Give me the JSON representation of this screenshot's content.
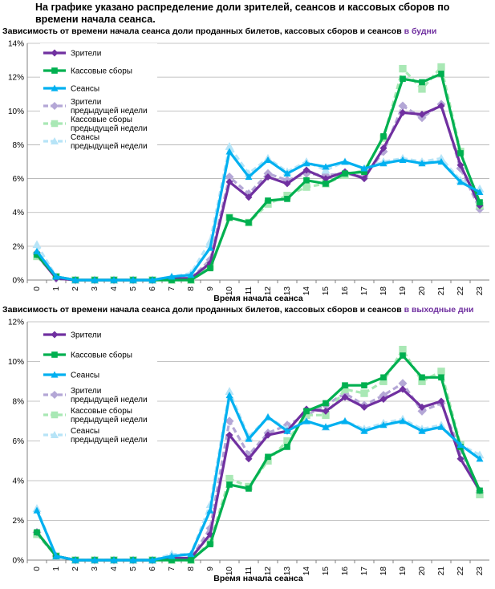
{
  "intro_text": "На графике указано распределение доли зрителей, сеансов и кассовых сборов по времени начала сеанса.",
  "colors": {
    "viewers": "#7030a0",
    "box_office": "#00b050",
    "sessions": "#00b0f0",
    "viewers_prev": "#b4a7d6",
    "box_office_prev": "#a9e8b5",
    "sessions_prev": "#b7e4f7"
  },
  "chart_data": [
    {
      "type": "line",
      "title_main": "Зависимость от времени начала сеанса доли проданных билетов, кассовых сборов и сеансов",
      "title_highlight": "в будни",
      "xlabel": "Время начала сеанса",
      "ylabel": "",
      "categories": [
        "0",
        "1",
        "2",
        "3",
        "4",
        "5",
        "6",
        "7",
        "8",
        "9",
        "10",
        "11",
        "12",
        "13",
        "14",
        "15",
        "16",
        "17",
        "18",
        "19",
        "20",
        "21",
        "22",
        "23"
      ],
      "yticks": [
        "0%",
        "2%",
        "4%",
        "6%",
        "8%",
        "10%",
        "12%",
        "14%"
      ],
      "ylim": [
        0,
        14
      ],
      "grid": true,
      "legend_position": "top-left",
      "series": [
        {
          "key": "viewers",
          "name": "Зрители",
          "marker": "diamond",
          "dash": false,
          "values": [
            1.5,
            0.1,
            0,
            0,
            0,
            0,
            0,
            0.1,
            0.1,
            1.0,
            5.8,
            4.9,
            6.1,
            5.7,
            6.5,
            6.0,
            6.4,
            6.0,
            7.8,
            9.9,
            9.8,
            10.3,
            6.8,
            4.4
          ]
        },
        {
          "key": "box_office",
          "name": "Кассовые сборы",
          "marker": "square",
          "dash": false,
          "values": [
            1.5,
            0.2,
            0,
            0,
            0,
            0,
            0,
            0,
            0,
            0.7,
            3.7,
            3.4,
            4.7,
            4.8,
            5.9,
            5.7,
            6.3,
            6.4,
            8.5,
            11.9,
            11.7,
            12.2,
            7.5,
            4.6
          ]
        },
        {
          "key": "sessions",
          "name": "Сеансы",
          "marker": "triangle",
          "dash": false,
          "values": [
            1.7,
            0.2,
            0,
            0,
            0,
            0,
            0,
            0.2,
            0.3,
            1.9,
            7.6,
            6.1,
            7.1,
            6.3,
            6.9,
            6.7,
            7.0,
            6.6,
            6.9,
            7.1,
            6.9,
            7.0,
            5.8,
            5.2
          ]
        },
        {
          "key": "viewers_prev",
          "name": "Зрители предыдущей недели",
          "marker": "diamond",
          "dash": true,
          "values": [
            1.6,
            0.1,
            0,
            0,
            0,
            0,
            0,
            0.1,
            0.1,
            1.2,
            6.1,
            5.1,
            6.3,
            5.9,
            6.3,
            6.2,
            6.3,
            6.1,
            7.6,
            10.3,
            9.6,
            10.4,
            6.6,
            4.2
          ]
        },
        {
          "key": "box_office_prev",
          "name": "Кассовые сборы предыдущей недели",
          "marker": "square",
          "dash": true,
          "values": [
            1.4,
            0.2,
            0,
            0,
            0,
            0,
            0,
            0,
            0,
            0.8,
            3.7,
            3.4,
            4.5,
            5.0,
            5.5,
            5.7,
            6.2,
            6.5,
            8.4,
            12.5,
            11.3,
            12.6,
            7.6,
            4.4
          ]
        },
        {
          "key": "sessions_prev",
          "name": "Сеансы предыдущей недели",
          "marker": "triangle",
          "dash": true,
          "values": [
            2.1,
            0.2,
            0,
            0,
            0,
            0,
            0,
            0.2,
            0.4,
            2.3,
            7.9,
            6.3,
            7.2,
            6.4,
            7.0,
            6.5,
            7.0,
            6.6,
            7.0,
            7.2,
            7.0,
            7.2,
            5.9,
            5.4
          ]
        }
      ]
    },
    {
      "type": "line",
      "title_main": "Зависимость от времени начала сеанса доли проданных билетов, кассовых сборов и сеансов",
      "title_highlight": "в выходные дни",
      "xlabel": "Время начала сеанса",
      "ylabel": "",
      "categories": [
        "0",
        "1",
        "2",
        "3",
        "4",
        "5",
        "6",
        "7",
        "8",
        "9",
        "10",
        "11",
        "12",
        "13",
        "14",
        "15",
        "16",
        "17",
        "18",
        "19",
        "20",
        "21",
        "22",
        "23"
      ],
      "yticks": [
        "0%",
        "2%",
        "4%",
        "6%",
        "8%",
        "10%",
        "12%"
      ],
      "ylim": [
        0,
        12
      ],
      "grid": true,
      "legend_position": "top-left",
      "series": [
        {
          "key": "viewers",
          "name": "Зрители",
          "marker": "diamond",
          "dash": false,
          "values": [
            1.4,
            0.2,
            0,
            0,
            0,
            0,
            0,
            0.1,
            0.1,
            1.3,
            6.3,
            5.1,
            6.3,
            6.5,
            7.6,
            7.5,
            8.2,
            7.7,
            8.1,
            8.6,
            7.7,
            8.0,
            5.1,
            3.5
          ]
        },
        {
          "key": "box_office",
          "name": "Кассовые сборы",
          "marker": "square",
          "dash": false,
          "values": [
            1.4,
            0.2,
            0,
            0,
            0,
            0,
            0,
            0,
            0,
            0.8,
            3.8,
            3.6,
            5.2,
            5.7,
            7.5,
            7.9,
            8.8,
            8.8,
            9.2,
            10.3,
            9.2,
            9.2,
            5.7,
            3.5
          ]
        },
        {
          "key": "sessions",
          "name": "Сеансы",
          "marker": "triangle",
          "dash": false,
          "values": [
            2.5,
            0.2,
            0,
            0,
            0,
            0,
            0,
            0.2,
            0.3,
            2.5,
            8.3,
            6.1,
            7.2,
            6.5,
            7.0,
            6.7,
            7.0,
            6.5,
            6.8,
            7.0,
            6.5,
            6.7,
            5.8,
            5.1
          ]
        },
        {
          "key": "viewers_prev",
          "name": "Зрители предыдущей недели",
          "marker": "diamond",
          "dash": true,
          "values": [
            1.4,
            0.2,
            0,
            0,
            0,
            0,
            0,
            0.1,
            0.1,
            1.6,
            7.0,
            5.3,
            6.4,
            6.8,
            7.3,
            7.8,
            8.4,
            7.8,
            8.3,
            8.9,
            7.5,
            7.9,
            5.5,
            3.4
          ]
        },
        {
          "key": "box_office_prev",
          "name": "Кассовые сборы предыдущей недели",
          "marker": "square",
          "dash": true,
          "values": [
            1.3,
            0.2,
            0,
            0,
            0,
            0,
            0,
            0,
            0,
            0.9,
            4.1,
            3.7,
            5.0,
            6.0,
            7.3,
            7.3,
            8.6,
            8.4,
            9.0,
            10.6,
            9.0,
            9.5,
            5.8,
            3.3
          ]
        },
        {
          "key": "sessions_prev",
          "name": "Сеансы предыдущей недели",
          "marker": "triangle",
          "dash": true,
          "values": [
            2.6,
            0.2,
            0,
            0,
            0,
            0,
            0,
            0.3,
            0.3,
            2.8,
            8.5,
            6.2,
            7.2,
            6.6,
            7.0,
            6.7,
            7.0,
            6.6,
            6.9,
            7.1,
            6.6,
            6.8,
            5.8,
            5.3
          ]
        }
      ]
    }
  ]
}
